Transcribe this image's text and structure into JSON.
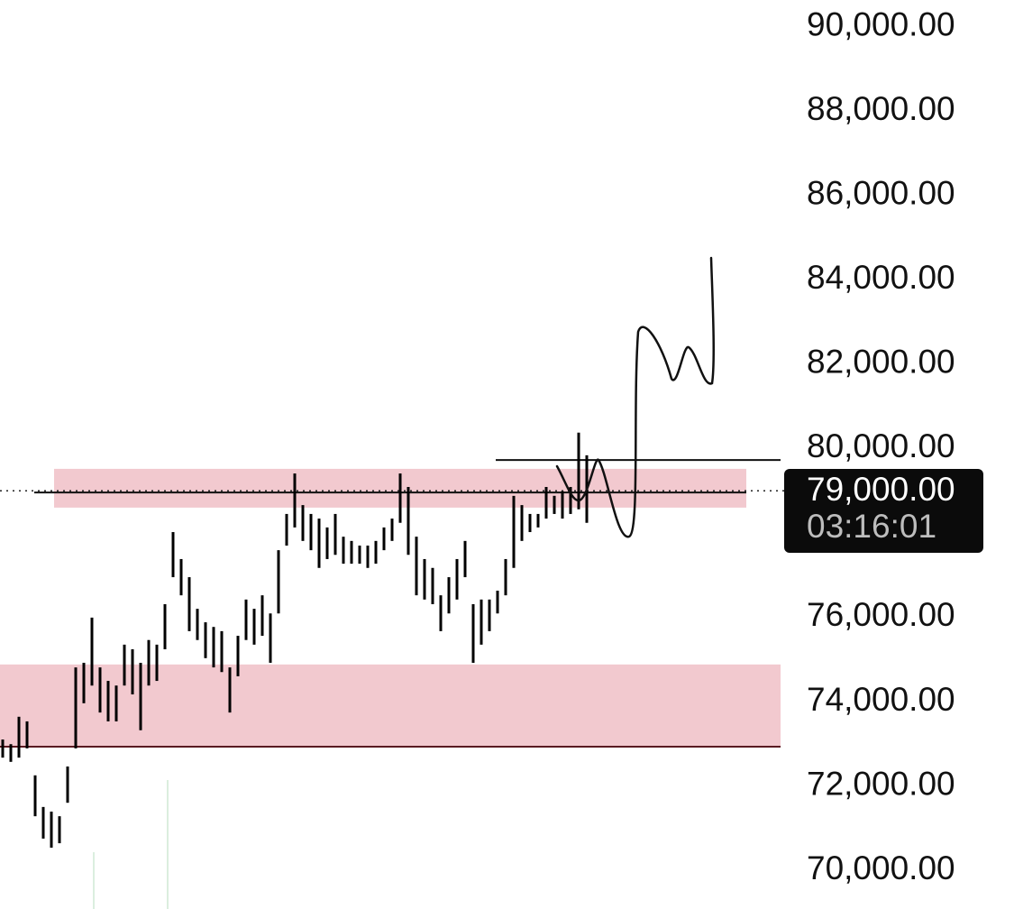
{
  "chart_data": {
    "type": "ohlc",
    "color": "#000000",
    "ylim": [
      69080,
      90640
    ],
    "yticks": [
      {
        "value": 90000,
        "label": "90,000.00"
      },
      {
        "value": 88000,
        "label": "88,000.00"
      },
      {
        "value": 86000,
        "label": "86,000.00"
      },
      {
        "value": 84000,
        "label": "84,000.00"
      },
      {
        "value": 82000,
        "label": "82,000.00"
      },
      {
        "value": 80000,
        "label": "80,000.00"
      },
      {
        "value": 76000,
        "label": "76,000.00"
      },
      {
        "value": 74000,
        "label": "74,000.00"
      },
      {
        "value": 72000,
        "label": "72,000.00"
      },
      {
        "value": 70000,
        "label": "70,000.00"
      }
    ],
    "high": [
      73100,
      72990,
      73640,
      73530,
      72250,
      71500,
      71390,
      71280,
      72460,
      74810,
      74920,
      75990,
      74810,
      74490,
      74380,
      75350,
      75240,
      74920,
      75460,
      75350,
      76310,
      78020,
      77380,
      76950,
      76200,
      75880,
      75770,
      75670,
      74810,
      75560,
      76420,
      76200,
      76520,
      76090,
      77590,
      78450,
      79410,
      78660,
      78450,
      78340,
      78130,
      78450,
      77910,
      77810,
      77700,
      77700,
      77810,
      78130,
      78340,
      79410,
      79090,
      77910,
      77380,
      77170,
      76520,
      76950,
      77380,
      77810,
      76310,
      76420,
      76420,
      76630,
      77380,
      78880,
      78660,
      78450,
      78450,
      79090,
      78880,
      78990,
      79090,
      80380,
      79840
    ],
    "low": [
      72670,
      72570,
      72670,
      72890,
      71280,
      70750,
      70535,
      70640,
      71600,
      72890,
      73960,
      74380,
      73740,
      73530,
      73530,
      74380,
      74170,
      73320,
      74380,
      74490,
      75240,
      76950,
      76520,
      75670,
      75460,
      75030,
      74810,
      74700,
      73740,
      74600,
      75460,
      75350,
      75560,
      74920,
      76090,
      77700,
      78130,
      77810,
      77590,
      77170,
      77380,
      77480,
      77270,
      77270,
      77270,
      77170,
      77270,
      77590,
      77810,
      78240,
      77480,
      76520,
      76420,
      76310,
      75670,
      76090,
      76420,
      76950,
      74920,
      75350,
      75670,
      76090,
      76520,
      77170,
      77810,
      78020,
      78130,
      78340,
      78450,
      78340,
      78450,
      78560,
      78240
    ],
    "bands": [
      {
        "low": 78600,
        "high": 79520,
        "color": "#f2c9cf"
      },
      {
        "low": 72930,
        "high": 74880,
        "color": "#f2c9cf"
      }
    ],
    "hlines": [
      78960,
      72930,
      79730
    ],
    "last_price": {
      "value": 79000,
      "label": "79,000.00"
    },
    "countdown": "03:16:01"
  }
}
